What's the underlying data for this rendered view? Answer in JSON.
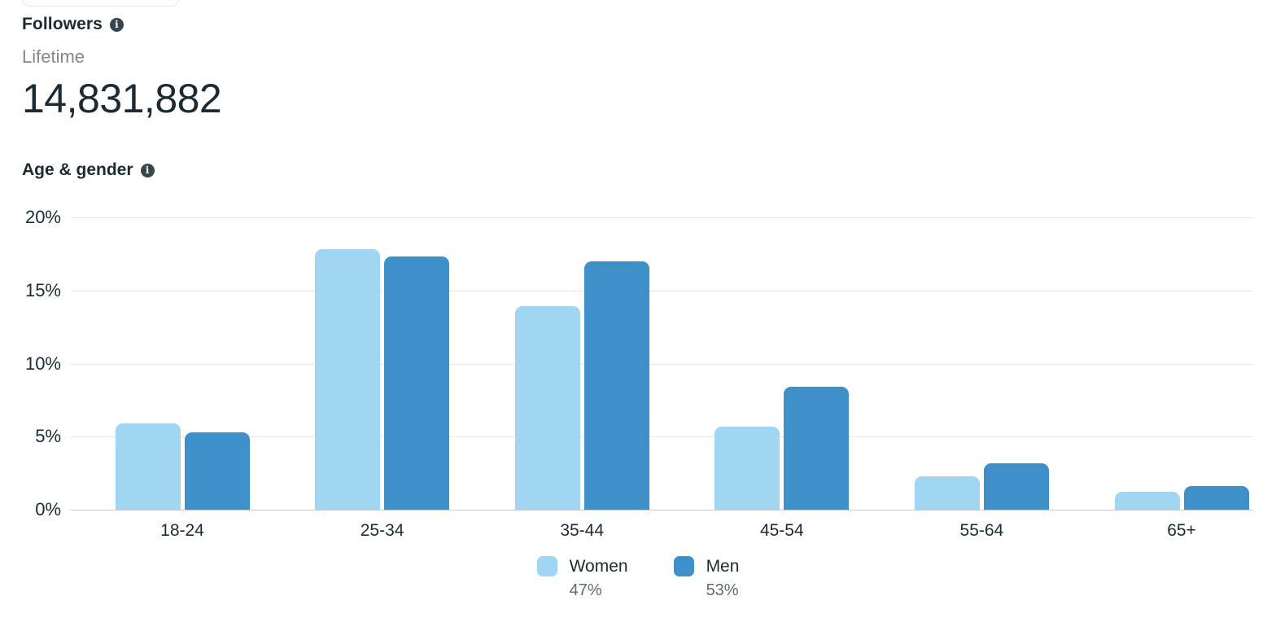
{
  "followers_card": {
    "title": "Followers",
    "period_label": "Lifetime",
    "total_value": "14,831,882"
  },
  "age_gender_section": {
    "title": "Age & gender"
  },
  "colors": {
    "women_bar": "#A1D6F3",
    "men_bar": "#3E90C8",
    "gridline": "#E5E7EA",
    "axis_baseline": "#C9CDD2",
    "text_dark": "#1C2B33",
    "text_gray": "#84888C",
    "legend_share_gray": "#5D6B75",
    "info_icon_bg": "#36454E"
  },
  "icons": {
    "followers_info": "info-icon",
    "age_gender_info": "info-icon",
    "info_glyph": "i"
  },
  "chart_data": {
    "type": "bar",
    "title": "Age & gender",
    "xlabel": "",
    "ylabel": "",
    "unit": "percent of followers",
    "categories": [
      "18-24",
      "25-34",
      "35-44",
      "45-54",
      "55-64",
      "65+"
    ],
    "series": [
      {
        "name": "Women",
        "share_label": "47%",
        "color": "#A1D6F3",
        "values": [
          5.9,
          17.8,
          13.9,
          5.7,
          2.3,
          1.2
        ]
      },
      {
        "name": "Men",
        "share_label": "53%",
        "color": "#3E90C8",
        "values": [
          5.3,
          17.3,
          17.0,
          8.4,
          3.2,
          1.6
        ]
      }
    ],
    "ylim": [
      0,
      20
    ],
    "yticks": [
      0,
      5,
      10,
      15,
      20
    ],
    "ytick_suffix": "%",
    "grid": "horizontal",
    "legend_position": "bottom-center"
  }
}
